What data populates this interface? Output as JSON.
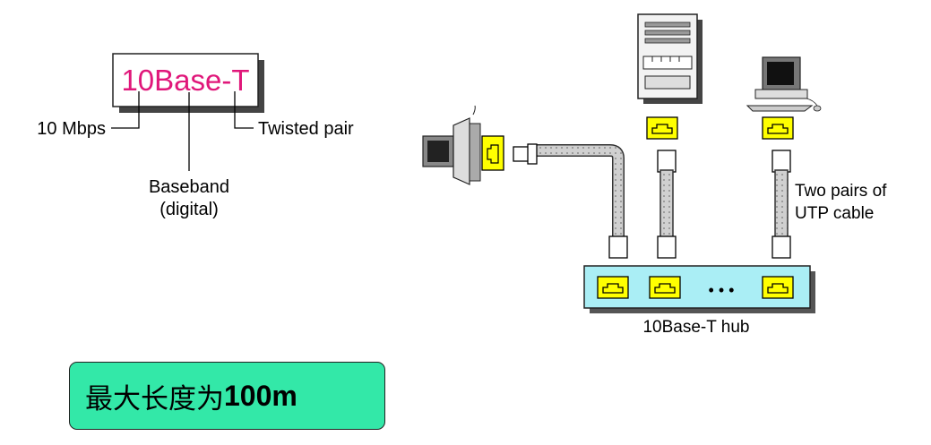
{
  "diagram": {
    "name_box": {
      "text": "10Base-T",
      "color": "#e0177a"
    },
    "labels": {
      "rate": "10 Mbps",
      "medium": "Twisted pair",
      "signal_line1": "Baseband",
      "signal_line2": "(digital)"
    },
    "cable_label_line1": "Two pairs of",
    "cable_label_line2": "UTP cable",
    "hub_label": "10Base-T hub",
    "hub_ellipsis": "• • •",
    "colors": {
      "port_fill": "#ffff00",
      "hub_fill": "#aaeef5",
      "cable_fill": "#c8c8c8"
    }
  },
  "callout": {
    "text": "最大长度为",
    "value": "100m",
    "color": "#33e8a8"
  }
}
